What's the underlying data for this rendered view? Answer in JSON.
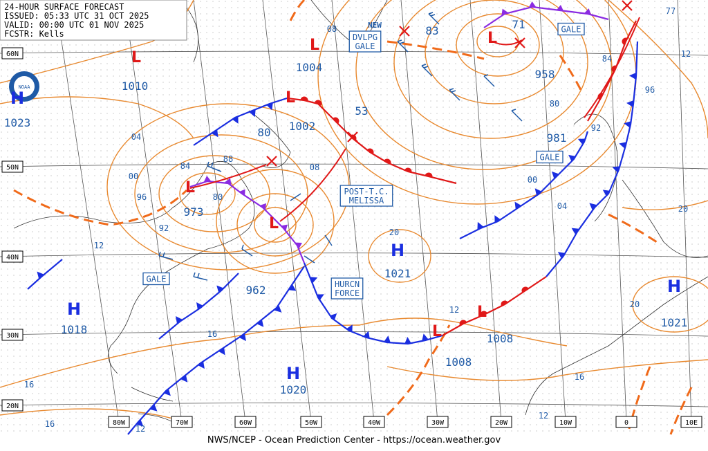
{
  "header": {
    "lines": [
      "24-HOUR SURFACE FORECAST",
      "ISSUED: 05:33 UTC 31 OCT 2025",
      "VALID:  00:00 UTC 01 NOV 2025",
      "FCSTR:  Kells"
    ]
  },
  "footer": "NWS/NCEP - Ocean Prediction Center - https://ocean.weather.gov",
  "lat_labels": [
    "60N",
    "50N",
    "40N",
    "30N",
    "20N"
  ],
  "lon_labels": [
    "80W",
    "70W",
    "60W",
    "50W",
    "40W",
    "30W",
    "20W",
    "10W",
    "0",
    "10E"
  ],
  "highs": [
    {
      "symbol": "H",
      "pressure": "1023"
    },
    {
      "symbol": "H",
      "pressure": "1018"
    },
    {
      "symbol": "H",
      "pressure": "1020"
    },
    {
      "symbol": "H",
      "pressure": "1021"
    },
    {
      "symbol": "H",
      "pressure": "1021"
    }
  ],
  "lows": [
    {
      "symbol": "L",
      "pressure": "1010"
    },
    {
      "symbol": "L",
      "pressure": "1004"
    },
    {
      "symbol": "L",
      "pressure": "1002"
    },
    {
      "symbol": "L",
      "pressure": "973"
    },
    {
      "symbol": "L",
      "pressure": "962"
    },
    {
      "symbol": "L",
      "pressure": "958"
    },
    {
      "symbol": "L",
      "pressure": "1008"
    },
    {
      "symbol": "L",
      "pressure": "1008"
    }
  ],
  "other_pressures": [
    "981",
    "83",
    "71",
    "53",
    "80"
  ],
  "boxes": [
    [
      "DVLPG",
      "GALE"
    ],
    [
      "GALE"
    ],
    [
      "GALE"
    ],
    [
      "POST-T.C.",
      "MELISSA"
    ],
    [
      "GALE"
    ],
    [
      "HURCN",
      "FORCE"
    ]
  ],
  "ice_label": "NEW",
  "isobar_labels": [
    "08",
    "84",
    "88",
    "04",
    "00",
    "96",
    "92",
    "80",
    "12",
    "08",
    "20",
    "16",
    "16",
    "16",
    "12",
    "12",
    "16",
    "12",
    "20",
    "20",
    "04",
    "00",
    "92",
    "96",
    "84",
    "80",
    "77",
    "12"
  ]
}
